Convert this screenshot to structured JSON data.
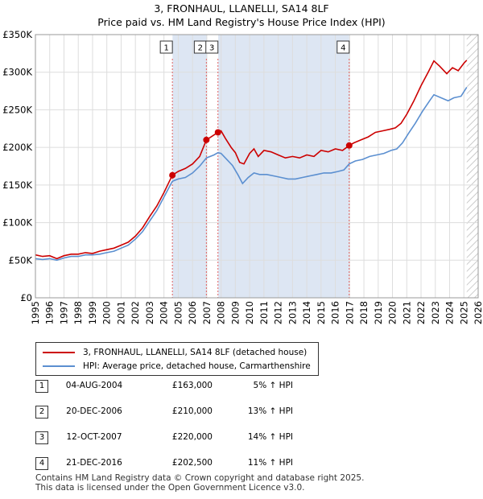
{
  "titles": {
    "line1": "3, FRONHAUL, LLANELLI, SA14 8LF",
    "line2": "Price paid vs. HM Land Registry's House Price Index (HPI)"
  },
  "chart_data": {
    "type": "line",
    "title": "3, FRONHAUL, LLANELLI, SA14 8LF — Price paid vs. HM Land Registry's House Price Index (HPI)",
    "xlabel": "",
    "ylabel": "",
    "xlim": [
      1995,
      2026
    ],
    "ylim": [
      0,
      350000
    ],
    "y_ticks": [
      {
        "value": 0,
        "label": "£0"
      },
      {
        "value": 50000,
        "label": "£50K"
      },
      {
        "value": 100000,
        "label": "£100K"
      },
      {
        "value": 150000,
        "label": "£150K"
      },
      {
        "value": 200000,
        "label": "£200K"
      },
      {
        "value": 250000,
        "label": "£250K"
      },
      {
        "value": 300000,
        "label": "£300K"
      },
      {
        "value": 350000,
        "label": "£350K"
      }
    ],
    "x_ticks": [
      "1995",
      "1996",
      "1997",
      "1998",
      "1999",
      "2000",
      "2001",
      "2002",
      "2003",
      "2004",
      "2005",
      "2006",
      "2007",
      "2008",
      "2009",
      "2010",
      "2011",
      "2012",
      "2013",
      "2014",
      "2015",
      "2016",
      "2017",
      "2018",
      "2019",
      "2020",
      "2021",
      "2022",
      "2023",
      "2024",
      "2025",
      "2026"
    ],
    "grid": true,
    "shaded_ranges": [
      [
        2004.6,
        2007.0
      ],
      [
        2007.8,
        2016.97
      ]
    ],
    "future_hatch_from": 2025.2,
    "series": [
      {
        "name": "3, FRONHAUL, LLANELLI, SA14 8LF (detached house)",
        "color": "#cc0000",
        "points": [
          [
            1995.0,
            57000
          ],
          [
            1995.5,
            55000
          ],
          [
            1996.0,
            56000
          ],
          [
            1996.5,
            52000
          ],
          [
            1997.0,
            56000
          ],
          [
            1997.5,
            58000
          ],
          [
            1998.0,
            58000
          ],
          [
            1998.5,
            60000
          ],
          [
            1999.0,
            59000
          ],
          [
            1999.5,
            62000
          ],
          [
            2000.0,
            64000
          ],
          [
            2000.5,
            66000
          ],
          [
            2001.0,
            70000
          ],
          [
            2001.5,
            74000
          ],
          [
            2002.0,
            82000
          ],
          [
            2002.5,
            93000
          ],
          [
            2003.0,
            108000
          ],
          [
            2003.5,
            122000
          ],
          [
            2004.0,
            140000
          ],
          [
            2004.59,
            163000
          ],
          [
            2005.0,
            168000
          ],
          [
            2005.5,
            172000
          ],
          [
            2006.0,
            178000
          ],
          [
            2006.5,
            188000
          ],
          [
            2006.97,
            210000
          ],
          [
            2007.3,
            214000
          ],
          [
            2007.78,
            220000
          ],
          [
            2008.0,
            222000
          ],
          [
            2008.3,
            212000
          ],
          [
            2008.7,
            200000
          ],
          [
            2009.0,
            193000
          ],
          [
            2009.3,
            180000
          ],
          [
            2009.6,
            178000
          ],
          [
            2010.0,
            192000
          ],
          [
            2010.3,
            198000
          ],
          [
            2010.6,
            188000
          ],
          [
            2011.0,
            196000
          ],
          [
            2011.5,
            194000
          ],
          [
            2012.0,
            190000
          ],
          [
            2012.5,
            186000
          ],
          [
            2013.0,
            188000
          ],
          [
            2013.5,
            186000
          ],
          [
            2014.0,
            190000
          ],
          [
            2014.5,
            188000
          ],
          [
            2015.0,
            196000
          ],
          [
            2015.5,
            194000
          ],
          [
            2016.0,
            198000
          ],
          [
            2016.5,
            196000
          ],
          [
            2016.97,
            202500
          ],
          [
            2017.3,
            206000
          ],
          [
            2017.8,
            210000
          ],
          [
            2018.3,
            214000
          ],
          [
            2018.8,
            220000
          ],
          [
            2019.3,
            222000
          ],
          [
            2019.8,
            224000
          ],
          [
            2020.2,
            226000
          ],
          [
            2020.6,
            232000
          ],
          [
            2021.0,
            244000
          ],
          [
            2021.5,
            262000
          ],
          [
            2022.0,
            282000
          ],
          [
            2022.5,
            300000
          ],
          [
            2022.9,
            315000
          ],
          [
            2023.3,
            308000
          ],
          [
            2023.8,
            298000
          ],
          [
            2024.2,
            306000
          ],
          [
            2024.6,
            302000
          ],
          [
            2025.0,
            312000
          ],
          [
            2025.2,
            316000
          ]
        ]
      },
      {
        "name": "HPI: Average price, detached house, Carmarthenshire",
        "color": "#5b8fd0",
        "points": [
          [
            1995.0,
            52000
          ],
          [
            1995.5,
            51000
          ],
          [
            1996.0,
            52000
          ],
          [
            1996.5,
            50000
          ],
          [
            1997.0,
            53000
          ],
          [
            1997.5,
            55000
          ],
          [
            1998.0,
            55000
          ],
          [
            1998.5,
            57000
          ],
          [
            1999.0,
            57000
          ],
          [
            1999.5,
            58000
          ],
          [
            2000.0,
            60000
          ],
          [
            2000.5,
            62000
          ],
          [
            2001.0,
            66000
          ],
          [
            2001.5,
            70000
          ],
          [
            2002.0,
            78000
          ],
          [
            2002.5,
            88000
          ],
          [
            2003.0,
            102000
          ],
          [
            2003.5,
            116000
          ],
          [
            2004.0,
            134000
          ],
          [
            2004.59,
            155000
          ],
          [
            2005.0,
            158000
          ],
          [
            2005.5,
            160000
          ],
          [
            2006.0,
            166000
          ],
          [
            2006.5,
            175000
          ],
          [
            2006.97,
            186000
          ],
          [
            2007.5,
            190000
          ],
          [
            2007.78,
            193000
          ],
          [
            2008.0,
            192000
          ],
          [
            2008.4,
            184000
          ],
          [
            2008.8,
            176000
          ],
          [
            2009.2,
            163000
          ],
          [
            2009.5,
            152000
          ],
          [
            2009.9,
            160000
          ],
          [
            2010.3,
            166000
          ],
          [
            2010.7,
            164000
          ],
          [
            2011.2,
            164000
          ],
          [
            2011.7,
            162000
          ],
          [
            2012.2,
            160000
          ],
          [
            2012.7,
            158000
          ],
          [
            2013.2,
            158000
          ],
          [
            2013.7,
            160000
          ],
          [
            2014.2,
            162000
          ],
          [
            2014.7,
            164000
          ],
          [
            2015.2,
            166000
          ],
          [
            2015.7,
            166000
          ],
          [
            2016.2,
            168000
          ],
          [
            2016.6,
            170000
          ],
          [
            2016.97,
            178000
          ],
          [
            2017.4,
            182000
          ],
          [
            2017.9,
            184000
          ],
          [
            2018.4,
            188000
          ],
          [
            2018.9,
            190000
          ],
          [
            2019.4,
            192000
          ],
          [
            2019.9,
            196000
          ],
          [
            2020.3,
            198000
          ],
          [
            2020.7,
            206000
          ],
          [
            2021.1,
            218000
          ],
          [
            2021.6,
            232000
          ],
          [
            2022.1,
            248000
          ],
          [
            2022.6,
            262000
          ],
          [
            2022.9,
            270000
          ],
          [
            2023.4,
            266000
          ],
          [
            2023.9,
            262000
          ],
          [
            2024.3,
            266000
          ],
          [
            2024.8,
            268000
          ],
          [
            2025.2,
            280000
          ]
        ]
      }
    ],
    "sales": [
      {
        "label": "1",
        "x": 2004.59,
        "price": 163000
      },
      {
        "label": "2",
        "x": 2006.97,
        "price": 210000
      },
      {
        "label": "3",
        "x": 2007.78,
        "price": 220000
      },
      {
        "label": "4",
        "x": 2016.97,
        "price": 202500
      }
    ]
  },
  "legend": {
    "property": "3, FRONHAUL, LLANELLI, SA14 8LF (detached house)",
    "hpi": "HPI: Average price, detached house, Carmarthenshire",
    "property_color": "#cc0000",
    "hpi_color": "#5b8fd0"
  },
  "sales_table": [
    {
      "num": "1",
      "date": "04-AUG-2004",
      "price": "£163,000",
      "hpi": "5% ↑ HPI"
    },
    {
      "num": "2",
      "date": "20-DEC-2006",
      "price": "£210,000",
      "hpi": "13% ↑ HPI"
    },
    {
      "num": "3",
      "date": "12-OCT-2007",
      "price": "£220,000",
      "hpi": "14% ↑ HPI"
    },
    {
      "num": "4",
      "date": "21-DEC-2016",
      "price": "£202,500",
      "hpi": "11% ↑ HPI"
    }
  ],
  "footer": {
    "line1": "Contains HM Land Registry data © Crown copyright and database right 2025.",
    "line2": "This data is licensed under the Open Government Licence v3.0."
  }
}
